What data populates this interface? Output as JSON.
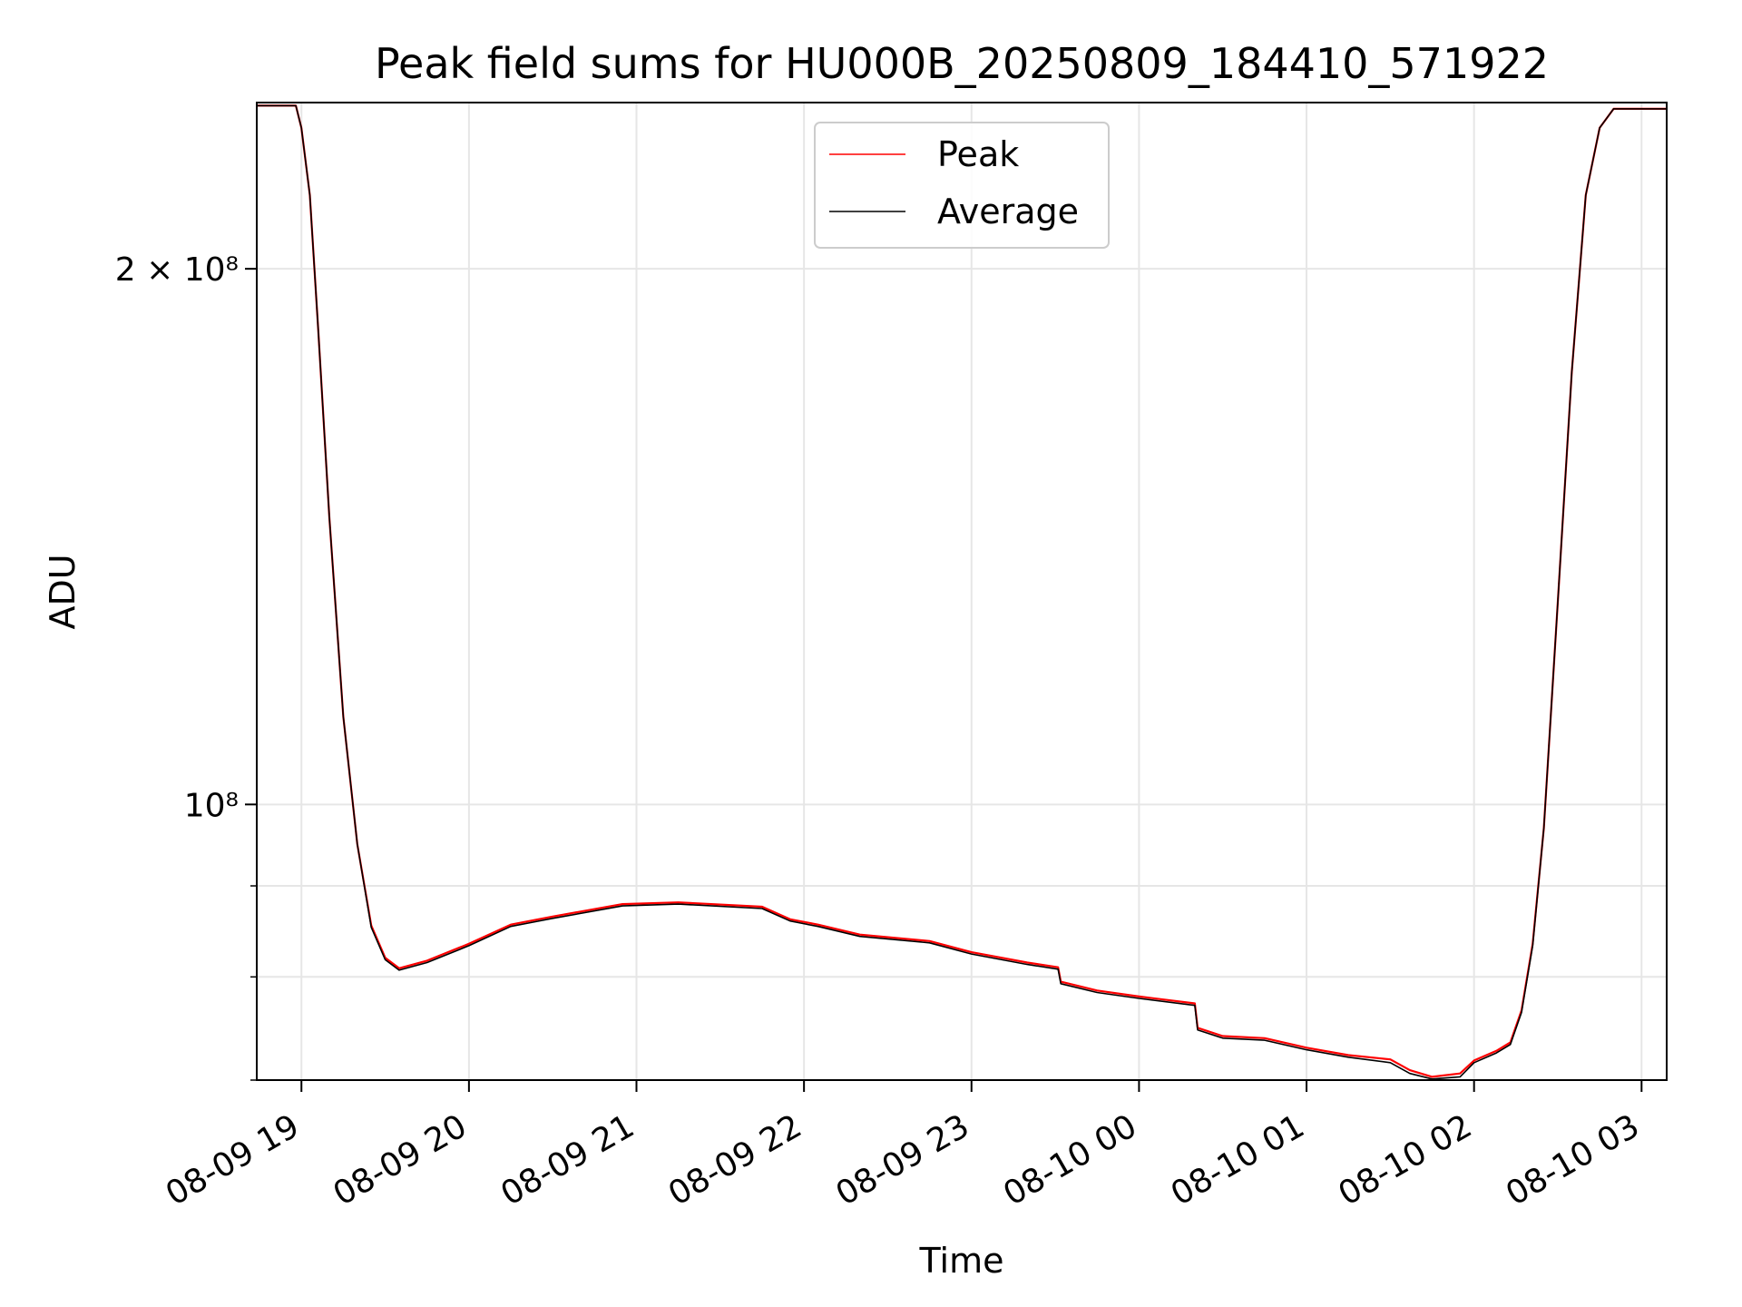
{
  "chart_data": {
    "type": "line",
    "title": "Peak field sums for HU000B_20250809_184410_571922",
    "xlabel": "Time",
    "ylabel": "ADU",
    "yscale": "log",
    "xlim": [
      "2025-08-09 18:44",
      "2025-08-10 03:09"
    ],
    "ylim": [
      70000000,
      248000000
    ],
    "grid": true,
    "legend_position": "top-center",
    "x_ticks": [
      "08-09 19",
      "08-09 20",
      "08-09 21",
      "08-09 22",
      "08-09 23",
      "08-10 00",
      "08-10 01",
      "08-10 02",
      "08-10 03"
    ],
    "y_ticks": [
      {
        "value": 200000000,
        "label": "2 × 10⁸"
      },
      {
        "value": 100000000,
        "label": "10⁸"
      }
    ],
    "series": [
      {
        "name": "Peak",
        "color": "#ff0000",
        "points": [
          [
            "2025-08-09 18:44",
            247000000
          ],
          [
            "2025-08-09 18:58",
            247000000
          ],
          [
            "2025-08-09 19:00",
            240000000
          ],
          [
            "2025-08-09 19:03",
            220000000
          ],
          [
            "2025-08-09 19:06",
            185000000
          ],
          [
            "2025-08-09 19:10",
            145000000
          ],
          [
            "2025-08-09 19:15",
            112000000
          ],
          [
            "2025-08-09 19:20",
            95000000
          ],
          [
            "2025-08-09 19:25",
            85500000
          ],
          [
            "2025-08-09 19:30",
            82000000
          ],
          [
            "2025-08-09 19:35",
            80900000
          ],
          [
            "2025-08-09 19:45",
            81700000
          ],
          [
            "2025-08-09 20:00",
            83500000
          ],
          [
            "2025-08-09 20:15",
            85600000
          ],
          [
            "2025-08-09 20:30",
            86500000
          ],
          [
            "2025-08-09 20:55",
            87900000
          ],
          [
            "2025-08-09 21:15",
            88100000
          ],
          [
            "2025-08-09 21:45",
            87600000
          ],
          [
            "2025-08-09 21:55",
            86200000
          ],
          [
            "2025-08-09 22:05",
            85600000
          ],
          [
            "2025-08-09 22:20",
            84500000
          ],
          [
            "2025-08-09 22:45",
            83800000
          ],
          [
            "2025-08-09 23:00",
            82600000
          ],
          [
            "2025-08-09 23:20",
            81500000
          ],
          [
            "2025-08-09 23:31",
            81000000
          ],
          [
            "2025-08-09 23:32",
            79500000
          ],
          [
            "2025-08-09 23:45",
            78600000
          ],
          [
            "2025-08-10 00:00",
            78000000
          ],
          [
            "2025-08-10 00:20",
            77300000
          ],
          [
            "2025-08-10 00:21",
            74900000
          ],
          [
            "2025-08-10 00:30",
            74100000
          ],
          [
            "2025-08-10 00:45",
            73900000
          ],
          [
            "2025-08-10 01:00",
            73000000
          ],
          [
            "2025-08-10 01:15",
            72300000
          ],
          [
            "2025-08-10 01:30",
            71900000
          ],
          [
            "2025-08-10 01:37",
            70900000
          ],
          [
            "2025-08-10 01:45",
            70300000
          ],
          [
            "2025-08-10 01:55",
            70600000
          ],
          [
            "2025-08-10 02:00",
            71800000
          ],
          [
            "2025-08-10 02:08",
            72700000
          ],
          [
            "2025-08-10 02:13",
            73500000
          ],
          [
            "2025-08-10 02:17",
            76600000
          ],
          [
            "2025-08-10 02:21",
            83500000
          ],
          [
            "2025-08-10 02:25",
            97000000
          ],
          [
            "2025-08-10 02:30",
            130000000
          ],
          [
            "2025-08-10 02:35",
            175000000
          ],
          [
            "2025-08-10 02:40",
            220000000
          ],
          [
            "2025-08-10 02:45",
            240000000
          ],
          [
            "2025-08-10 02:50",
            246000000
          ],
          [
            "2025-08-10 03:09",
            246000000
          ]
        ]
      },
      {
        "name": "Average",
        "color": "#000000",
        "points": [
          [
            "2025-08-09 18:44",
            247000000
          ],
          [
            "2025-08-09 18:58",
            247000000
          ],
          [
            "2025-08-09 19:00",
            240000000
          ],
          [
            "2025-08-09 19:03",
            220000000
          ],
          [
            "2025-08-09 19:06",
            185000000
          ],
          [
            "2025-08-09 19:10",
            145000000
          ],
          [
            "2025-08-09 19:15",
            112000000
          ],
          [
            "2025-08-09 19:20",
            95000000
          ],
          [
            "2025-08-09 19:25",
            85300000
          ],
          [
            "2025-08-09 19:30",
            81800000
          ],
          [
            "2025-08-09 19:35",
            80700000
          ],
          [
            "2025-08-09 19:45",
            81500000
          ],
          [
            "2025-08-09 20:00",
            83300000
          ],
          [
            "2025-08-09 20:15",
            85400000
          ],
          [
            "2025-08-09 20:30",
            86300000
          ],
          [
            "2025-08-09 20:55",
            87700000
          ],
          [
            "2025-08-09 21:15",
            87900000
          ],
          [
            "2025-08-09 21:45",
            87400000
          ],
          [
            "2025-08-09 21:55",
            86000000
          ],
          [
            "2025-08-09 22:05",
            85400000
          ],
          [
            "2025-08-09 22:20",
            84300000
          ],
          [
            "2025-08-09 22:45",
            83600000
          ],
          [
            "2025-08-09 23:00",
            82400000
          ],
          [
            "2025-08-09 23:20",
            81300000
          ],
          [
            "2025-08-09 23:31",
            80800000
          ],
          [
            "2025-08-09 23:32",
            79300000
          ],
          [
            "2025-08-09 23:45",
            78400000
          ],
          [
            "2025-08-10 00:00",
            77800000
          ],
          [
            "2025-08-10 00:20",
            77100000
          ],
          [
            "2025-08-10 00:21",
            74700000
          ],
          [
            "2025-08-10 00:30",
            73900000
          ],
          [
            "2025-08-10 00:45",
            73700000
          ],
          [
            "2025-08-10 01:00",
            72800000
          ],
          [
            "2025-08-10 01:15",
            72100000
          ],
          [
            "2025-08-10 01:30",
            71600000
          ],
          [
            "2025-08-10 01:37",
            70600000
          ],
          [
            "2025-08-10 01:45",
            70100000
          ],
          [
            "2025-08-10 01:55",
            70300000
          ],
          [
            "2025-08-10 02:00",
            71600000
          ],
          [
            "2025-08-10 02:08",
            72500000
          ],
          [
            "2025-08-10 02:13",
            73300000
          ],
          [
            "2025-08-10 02:17",
            76400000
          ],
          [
            "2025-08-10 02:21",
            83300000
          ],
          [
            "2025-08-10 02:25",
            97000000
          ],
          [
            "2025-08-10 02:30",
            130000000
          ],
          [
            "2025-08-10 02:35",
            175000000
          ],
          [
            "2025-08-10 02:40",
            220000000
          ],
          [
            "2025-08-10 02:45",
            240000000
          ],
          [
            "2025-08-10 02:50",
            246000000
          ],
          [
            "2025-08-10 03:09",
            246000000
          ]
        ]
      }
    ]
  }
}
